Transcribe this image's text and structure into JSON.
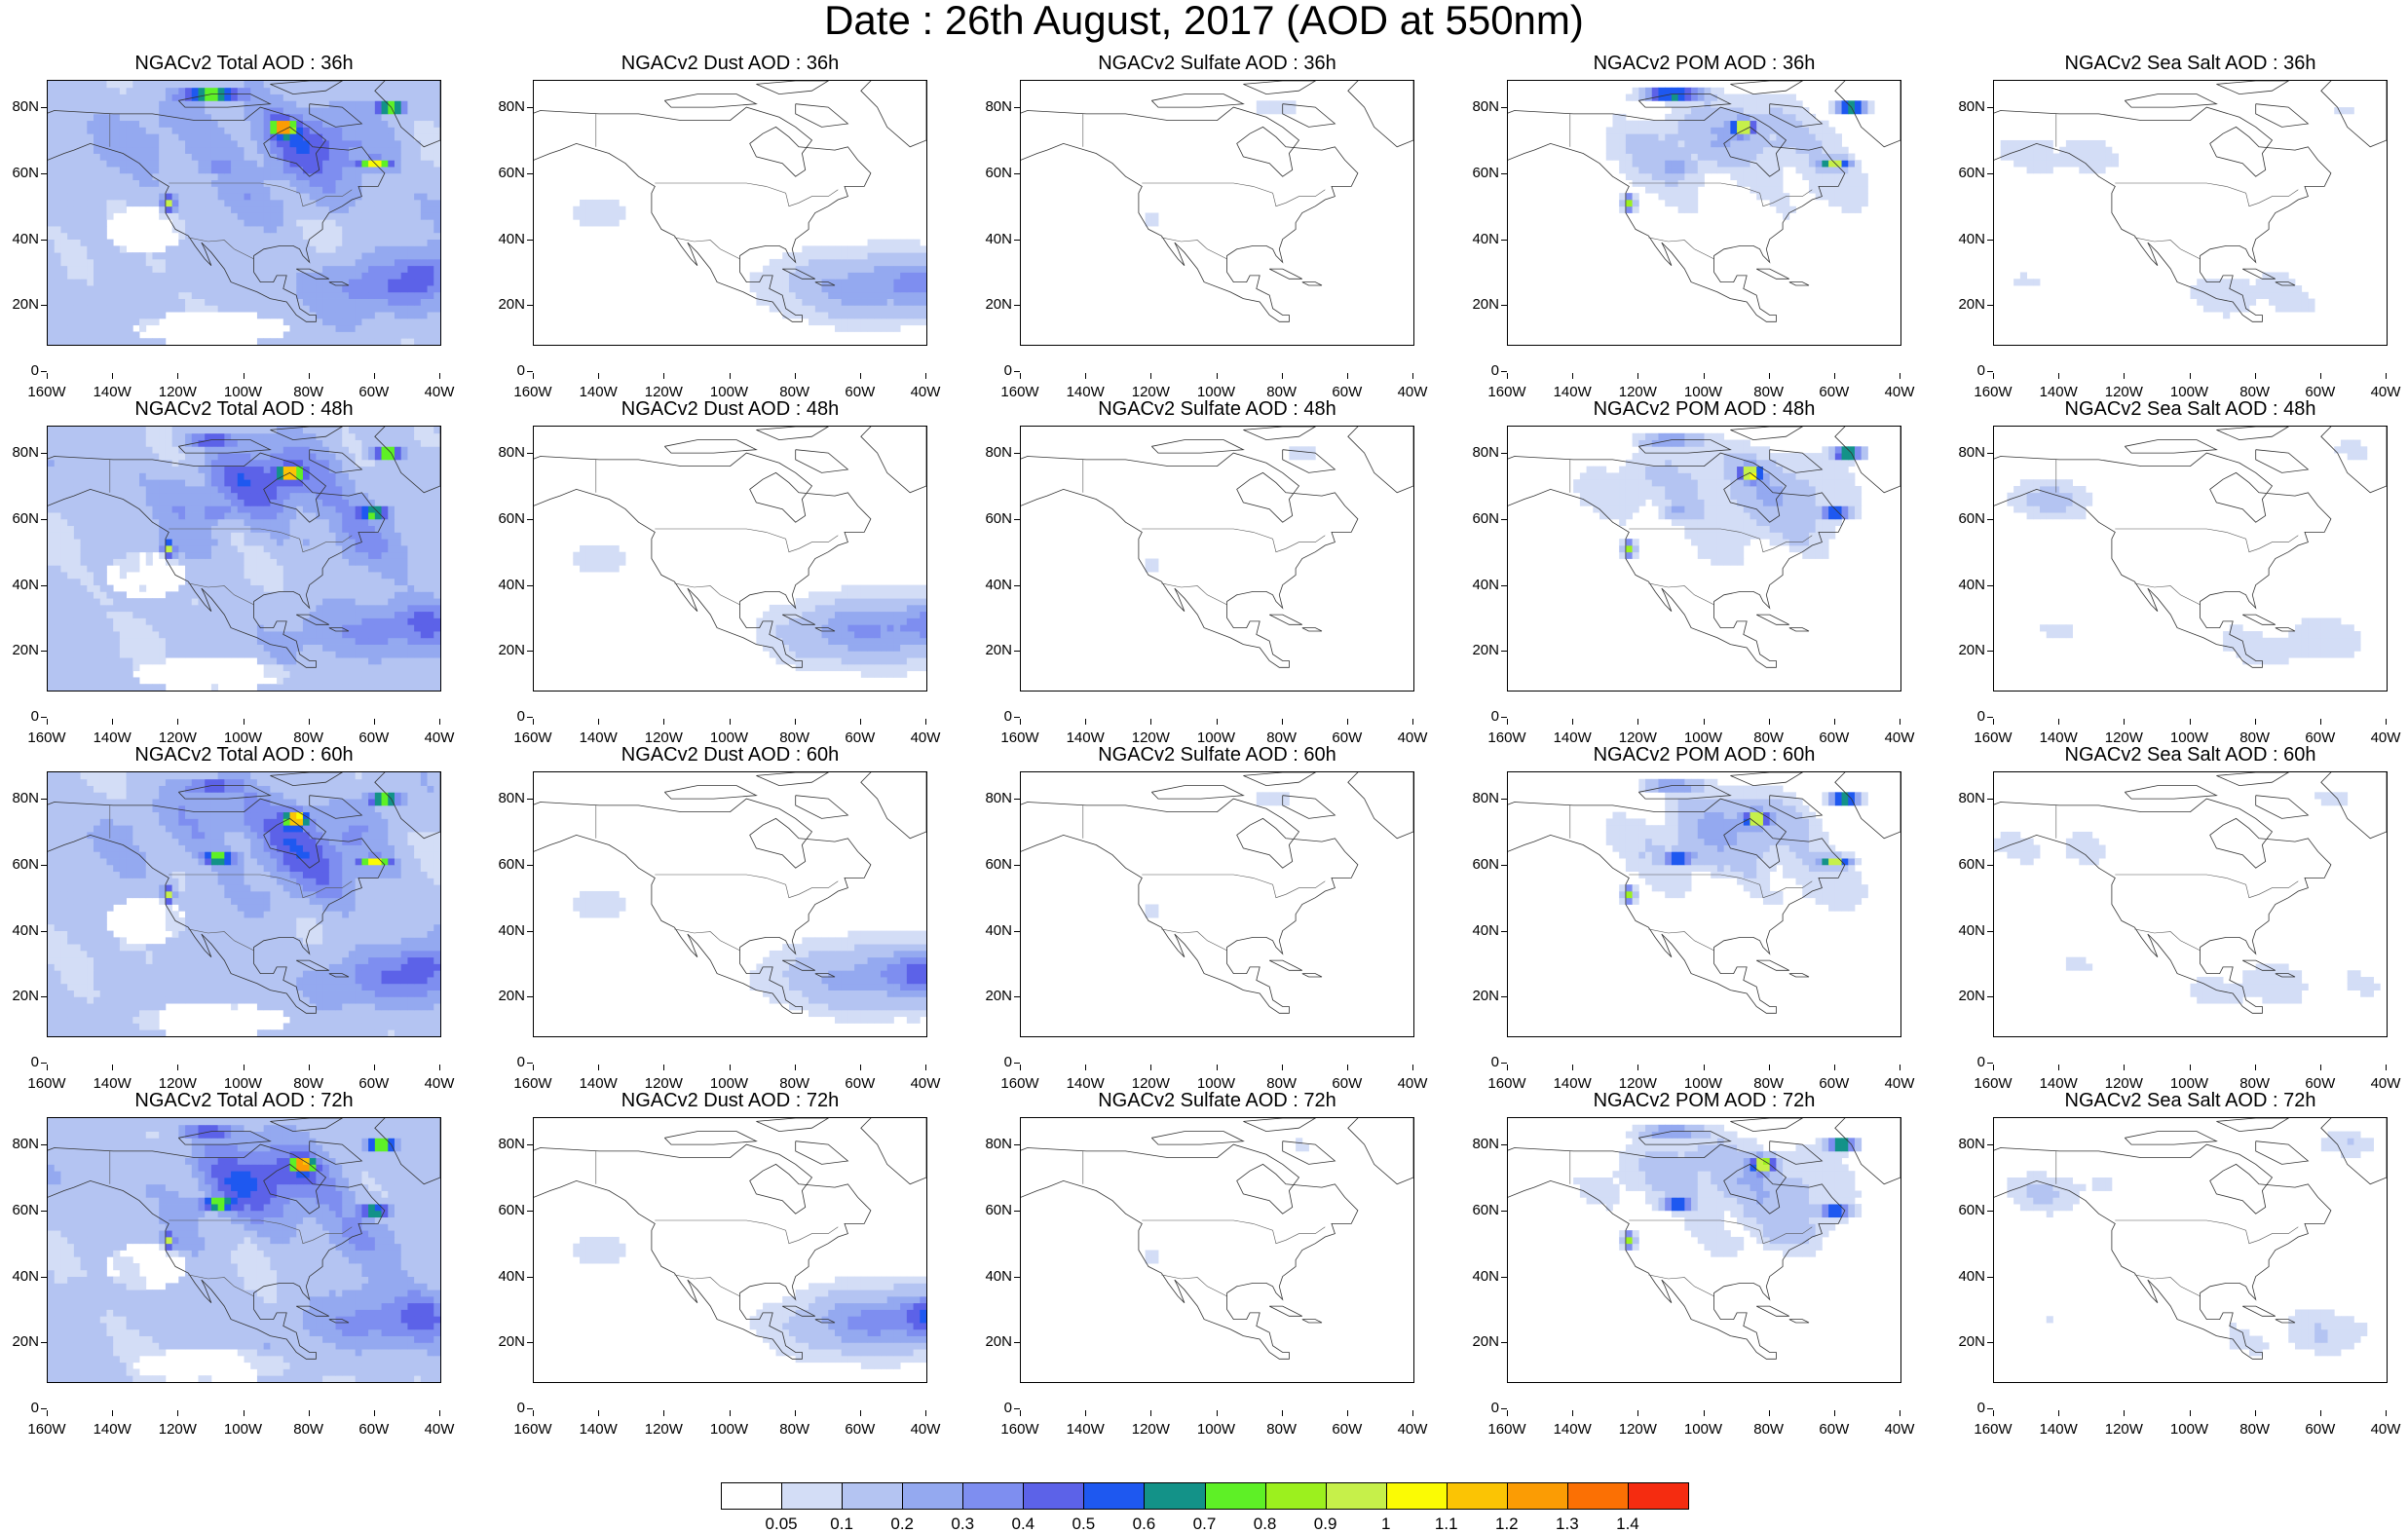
{
  "title": "Date : 26th August, 2017 (AOD at 550nm)",
  "panels": [
    {
      "title": "NGACv2 Total AOD : 36h",
      "kind": "total",
      "hour": 0
    },
    {
      "title": "NGACv2 Dust AOD : 36h",
      "kind": "dust",
      "hour": 0
    },
    {
      "title": "NGACv2 Sulfate AOD : 36h",
      "kind": "sulfate",
      "hour": 0
    },
    {
      "title": "NGACv2 POM AOD : 36h",
      "kind": "pom",
      "hour": 0
    },
    {
      "title": "NGACv2 Sea Salt AOD : 36h",
      "kind": "seasalt",
      "hour": 0
    },
    {
      "title": "NGACv2 Total AOD : 48h",
      "kind": "total",
      "hour": 1
    },
    {
      "title": "NGACv2 Dust AOD : 48h",
      "kind": "dust",
      "hour": 1
    },
    {
      "title": "NGACv2 Sulfate AOD : 48h",
      "kind": "sulfate",
      "hour": 1
    },
    {
      "title": "NGACv2 POM AOD : 48h",
      "kind": "pom",
      "hour": 1
    },
    {
      "title": "NGACv2 Sea Salt AOD : 48h",
      "kind": "seasalt",
      "hour": 1
    },
    {
      "title": "NGACv2 Total AOD : 60h",
      "kind": "total",
      "hour": 2
    },
    {
      "title": "NGACv2 Dust AOD : 60h",
      "kind": "dust",
      "hour": 2
    },
    {
      "title": "NGACv2 Sulfate AOD : 60h",
      "kind": "sulfate",
      "hour": 2
    },
    {
      "title": "NGACv2 POM AOD : 60h",
      "kind": "pom",
      "hour": 2
    },
    {
      "title": "NGACv2 Sea Salt AOD : 60h",
      "kind": "seasalt",
      "hour": 2
    },
    {
      "title": "NGACv2 Total AOD : 72h",
      "kind": "total",
      "hour": 3
    },
    {
      "title": "NGACv2 Dust AOD : 72h",
      "kind": "dust",
      "hour": 3
    },
    {
      "title": "NGACv2 Sulfate AOD : 72h",
      "kind": "sulfate",
      "hour": 3
    },
    {
      "title": "NGACv2 POM AOD : 72h",
      "kind": "pom",
      "hour": 3
    },
    {
      "title": "NGACv2 Sea Salt  AOD : 72h",
      "kind": "seasalt",
      "hour": 3
    }
  ],
  "lat_ticks": [
    "80N",
    "60N",
    "40N",
    "20N",
    "0"
  ],
  "lon_ticks": [
    "160W",
    "140W",
    "120W",
    "100W",
    "80W",
    "60W",
    "40W"
  ],
  "map_extent": {
    "lon": [
      -160,
      -40
    ],
    "lat": [
      0,
      80
    ]
  },
  "colorbar": {
    "colors": [
      "#ffffff",
      "#d3ddf6",
      "#b4c4f2",
      "#94a9f0",
      "#7e8ef0",
      "#5c62e8",
      "#1e58f0",
      "#139288",
      "#5ef026",
      "#9cf01e",
      "#c6f04a",
      "#fbfb04",
      "#fbc404",
      "#fb9c04",
      "#fb7004",
      "#f52c10"
    ],
    "labels": [
      "0.05",
      "0.1",
      "0.2",
      "0.3",
      "0.4",
      "0.5",
      "0.6",
      "0.7",
      "0.8",
      "0.9",
      "1",
      "1.1",
      "1.2",
      "1.3",
      "1.4"
    ]
  }
}
